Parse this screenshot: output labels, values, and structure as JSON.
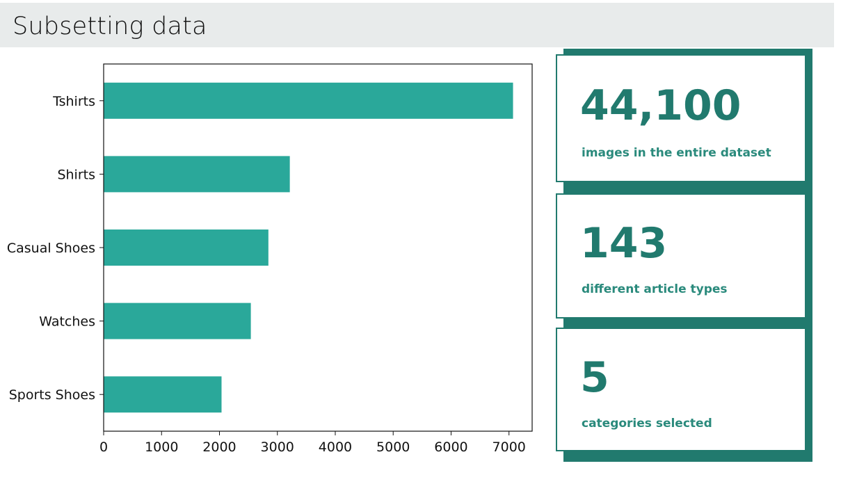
{
  "header": {
    "title": "Subsetting data"
  },
  "chart_data": {
    "type": "bar",
    "orientation": "horizontal",
    "categories": [
      "Tshirts",
      "Shirts",
      "Casual Shoes",
      "Watches",
      "Sports Shoes"
    ],
    "values": [
      7070,
      3215,
      2845,
      2542,
      2036
    ],
    "xlim": [
      0,
      7400
    ],
    "xticks": [
      0,
      1000,
      2000,
      3000,
      4000,
      5000,
      6000,
      7000
    ],
    "bar_color": "#2aa89a",
    "grid": false,
    "title": "",
    "xlabel": "",
    "ylabel": ""
  },
  "stats": [
    {
      "value": "44,100",
      "label": "images in the entire dataset"
    },
    {
      "value": "143",
      "label": "different article types"
    },
    {
      "value": "5",
      "label": "categories selected"
    }
  ],
  "colors": {
    "accent": "#217a6e",
    "label": "#2a8a7c",
    "title_bar": "#e8ebeb"
  }
}
